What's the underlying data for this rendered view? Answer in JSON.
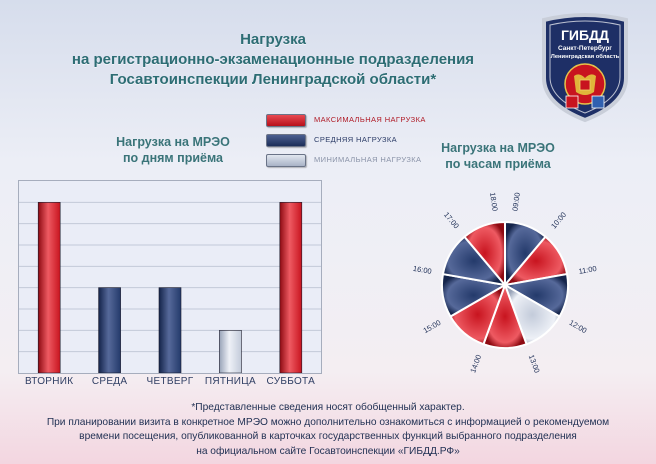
{
  "header": {
    "title_lines": [
      "Нагрузка",
      "на регистрационно-экзаменационные подразделения",
      "Госавтоинспекции Ленинградской области*"
    ]
  },
  "badge": {
    "text_top": "ГИБДД",
    "text_city": "Санкт-Петербург",
    "text_region": "Ленинградская область",
    "icon": "gibdd-emblem-badge"
  },
  "colors": {
    "max": "#c8141f",
    "avg": "#243a6b",
    "min": "#b8c2d4"
  },
  "legend": {
    "items": [
      {
        "label": "МАКСИМАЛЬНАЯ НАГРУЗКА",
        "color": "#c8141f",
        "text_color": "#b01a26"
      },
      {
        "label": "СРЕДНЯЯ НАГРУЗКА",
        "color": "#243a6b",
        "text_color": "#2b3b66"
      },
      {
        "label": "МИНИМАЛЬНАЯ НАГРУЗКА",
        "color": "#b8c2d4",
        "text_color": "#8a93a8"
      }
    ]
  },
  "chart_data": [
    {
      "type": "bar",
      "title_lines": [
        "Нагрузка на МРЭО",
        "по дням приёма"
      ],
      "categories": [
        "ВТОРНИК",
        "СРЕДА",
        "ЧЕТВЕРГ",
        "ПЯТНИЦА",
        "СУББОТА"
      ],
      "values": [
        4,
        2,
        2,
        1,
        4
      ],
      "levels": [
        "max",
        "avg",
        "avg",
        "min",
        "max"
      ],
      "ylim": [
        0,
        4.5
      ],
      "grid": true,
      "y_ticks_shown": false
    },
    {
      "type": "pie",
      "title_lines": [
        "Нагрузка на МРЭО",
        "по часам приёма"
      ],
      "slices": [
        {
          "label": "09:00",
          "level": "avg"
        },
        {
          "label": "10:00",
          "level": "max"
        },
        {
          "label": "11:00",
          "level": "avg"
        },
        {
          "label": "12:00",
          "level": "min"
        },
        {
          "label": "13:00",
          "level": "max"
        },
        {
          "label": "14:00",
          "level": "max"
        },
        {
          "label": "15:00",
          "level": "avg"
        },
        {
          "label": "16:00",
          "level": "avg"
        },
        {
          "label": "17:00",
          "level": "max"
        }
      ],
      "extra_labels": [
        "18:00"
      ],
      "equal_slices": true
    }
  ],
  "footer": {
    "lines": [
      "*Представленные сведения носят обобщенный характер.",
      "При планировании визита в конкретное МРЭО можно дополнительно ознакомиться с информацией о рекомендуемом",
      "времени посещения, опубликованной в карточках государственных функций выбранного подразделения",
      "на официальном сайте Госавтоинспекции «ГИБДД.РФ»"
    ]
  }
}
